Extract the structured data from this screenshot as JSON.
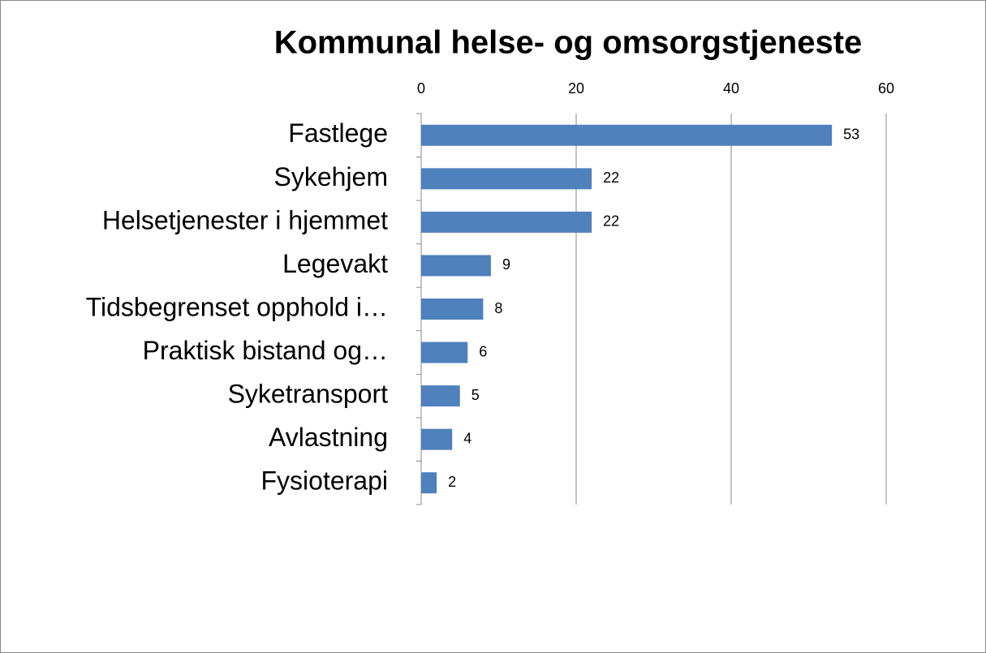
{
  "chart_data": {
    "type": "bar",
    "orientation": "horizontal",
    "title": "Kommunal helse- og omsorgstjeneste",
    "categories": [
      "Fastlege",
      "Sykehjem",
      "Helsetjenester i hjemmet",
      "Legevakt",
      "Tidsbegrenset opphold i…",
      "Praktisk bistand og…",
      "Syketransport",
      "Avlastning",
      "Fysioterapi"
    ],
    "values": [
      53,
      22,
      22,
      9,
      8,
      6,
      5,
      4,
      2
    ],
    "color": "#4f81bd",
    "xlim": [
      0,
      60
    ],
    "xticks": [
      0,
      20,
      40,
      60
    ],
    "grid": true
  }
}
